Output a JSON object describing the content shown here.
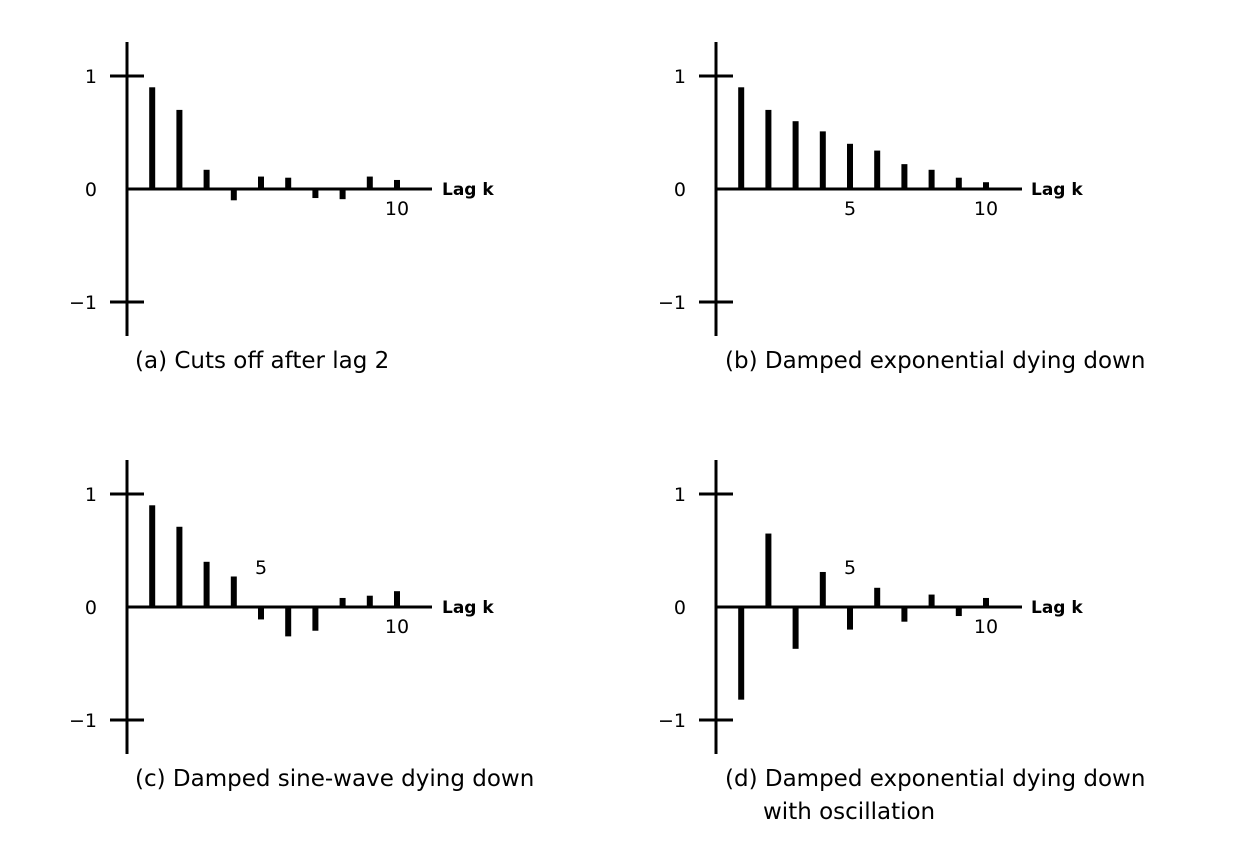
{
  "chart_data": [
    {
      "type": "bar",
      "panel": "a",
      "title": "(a) Cuts off after lag 2",
      "xlabel": "Lag k",
      "ylabel": "",
      "ylim": [
        -1,
        1
      ],
      "yticks": [
        1,
        0,
        -1
      ],
      "yticklabels": [
        "1",
        "0",
        "−1"
      ],
      "xticklabels": [
        {
          "k": 10,
          "label": "10"
        }
      ],
      "x": [
        1,
        2,
        3,
        4,
        5,
        6,
        7,
        8,
        9,
        10
      ],
      "values": [
        0.9,
        0.7,
        0.17,
        -0.1,
        0.11,
        0.1,
        -0.08,
        -0.09,
        0.11,
        0.08
      ]
    },
    {
      "type": "bar",
      "panel": "b",
      "title": "(b) Damped exponential dying down",
      "xlabel": "Lag k",
      "ylabel": "",
      "ylim": [
        -1,
        1
      ],
      "yticks": [
        1,
        0,
        -1
      ],
      "yticklabels": [
        "1",
        "0",
        "−1"
      ],
      "xticklabels": [
        {
          "k": 5,
          "label": "5"
        },
        {
          "k": 10,
          "label": "10"
        }
      ],
      "x": [
        1,
        2,
        3,
        4,
        5,
        6,
        7,
        8,
        9,
        10
      ],
      "values": [
        0.9,
        0.7,
        0.6,
        0.51,
        0.4,
        0.34,
        0.22,
        0.17,
        0.1,
        0.06
      ]
    },
    {
      "type": "bar",
      "panel": "c",
      "title": "(c) Damped sine-wave dying down",
      "xlabel": "Lag k",
      "ylabel": "",
      "ylim": [
        -1,
        1
      ],
      "yticks": [
        1,
        0,
        -1
      ],
      "yticklabels": [
        "1",
        "0",
        "−1"
      ],
      "xticklabels": [
        {
          "k": 5,
          "label": "5",
          "position": "above"
        },
        {
          "k": 10,
          "label": "10"
        }
      ],
      "x": [
        1,
        2,
        3,
        4,
        5,
        6,
        7,
        8,
        9,
        10
      ],
      "values": [
        0.9,
        0.71,
        0.4,
        0.27,
        -0.11,
        -0.26,
        -0.21,
        0.08,
        0.1,
        0.14
      ]
    },
    {
      "type": "bar",
      "panel": "d",
      "title": "(d) Damped exponential dying down",
      "title_line2": "with oscillation",
      "xlabel": "Lag k",
      "ylabel": "",
      "ylim": [
        -1,
        1
      ],
      "yticks": [
        1,
        0,
        -1
      ],
      "yticklabels": [
        "1",
        "0",
        "−1"
      ],
      "xticklabels": [
        {
          "k": 5,
          "label": "5",
          "position": "above"
        },
        {
          "k": 10,
          "label": "10"
        }
      ],
      "x": [
        1,
        2,
        3,
        4,
        5,
        6,
        7,
        8,
        9,
        10
      ],
      "values": [
        -0.82,
        0.65,
        -0.37,
        0.31,
        -0.2,
        0.17,
        -0.13,
        0.11,
        -0.08,
        0.08
      ]
    }
  ]
}
